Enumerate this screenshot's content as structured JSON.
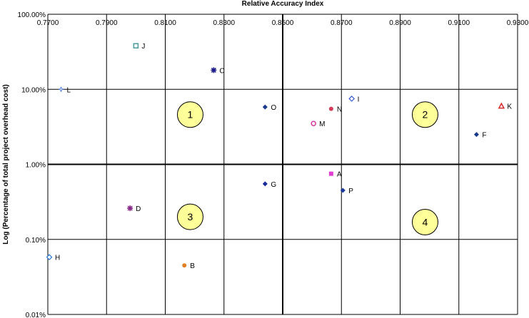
{
  "chart_data": {
    "type": "scatter",
    "title": "",
    "xlabel": "Relative Accuracy Index",
    "ylabel": "Log (Percentage of total project overhead cost)",
    "x_axis_position": "top",
    "xlim": [
      0.77,
      0.93
    ],
    "x_ticks": [
      0.77,
      0.79,
      0.81,
      0.83,
      0.85,
      0.87,
      0.89,
      0.91,
      0.93
    ],
    "x_tick_labels": [
      "0.7700",
      "0.7900",
      "0.8100",
      "0.8300",
      "0.8500",
      "0.8700",
      "0.8900",
      "0.9100",
      "0.9300"
    ],
    "y_scale": "log",
    "ylim": [
      0.01,
      100
    ],
    "y_ticks": [
      0.01,
      0.1,
      1,
      10,
      100
    ],
    "y_tick_labels": [
      "0.01%",
      "0.10%",
      "1.00%",
      "10.00%",
      "100.00%"
    ],
    "grid": true,
    "divider_lines": {
      "x": 0.85,
      "y": 1
    },
    "points": [
      {
        "label": "J",
        "x": 0.8,
        "y": 38.0,
        "marker": "square-open",
        "color": "#4a9a9a"
      },
      {
        "label": "C",
        "x": 0.8265,
        "y": 18.0,
        "marker": "star",
        "color": "#1a1a8c"
      },
      {
        "label": "L",
        "x": 0.7745,
        "y": 10.0,
        "marker": "plus",
        "color": "#4a7ad4"
      },
      {
        "label": "O",
        "x": 0.844,
        "y": 5.8,
        "marker": "diamond",
        "color": "#1a3a8c"
      },
      {
        "label": "I",
        "x": 0.8735,
        "y": 7.5,
        "marker": "diamond-open",
        "color": "#3a5ad4"
      },
      {
        "label": "N",
        "x": 0.8665,
        "y": 5.5,
        "marker": "circle",
        "color": "#d43a5a"
      },
      {
        "label": "M",
        "x": 0.8605,
        "y": 3.5,
        "marker": "circle-open",
        "color": "#d43aa0"
      },
      {
        "label": "K",
        "x": 0.9245,
        "y": 6.0,
        "marker": "triangle",
        "color": "#d42a2a"
      },
      {
        "label": "F",
        "x": 0.916,
        "y": 2.5,
        "marker": "diamond",
        "color": "#1a3a8c"
      },
      {
        "label": "A",
        "x": 0.8665,
        "y": 0.75,
        "marker": "square",
        "color": "#e040d0"
      },
      {
        "label": "G",
        "x": 0.844,
        "y": 0.55,
        "marker": "diamond",
        "color": "#1a2a9c"
      },
      {
        "label": "P",
        "x": 0.8705,
        "y": 0.45,
        "marker": "diamond",
        "color": "#1a3a9c"
      },
      {
        "label": "D",
        "x": 0.798,
        "y": 0.26,
        "marker": "star",
        "color": "#8a2a8a"
      },
      {
        "label": "H",
        "x": 0.7705,
        "y": 0.058,
        "marker": "diamond-open",
        "color": "#2a7ad4"
      },
      {
        "label": "B",
        "x": 0.8165,
        "y": 0.045,
        "marker": "circle",
        "color": "#e08020"
      }
    ],
    "quadrant_labels": [
      {
        "label": "1",
        "x": 0.8185,
        "y": 4.6
      },
      {
        "label": "2",
        "x": 0.8985,
        "y": 4.6
      },
      {
        "label": "3",
        "x": 0.8185,
        "y": 0.2
      },
      {
        "label": "4",
        "x": 0.8985,
        "y": 0.17
      }
    ],
    "quadrant_fill": "#ffff99"
  }
}
